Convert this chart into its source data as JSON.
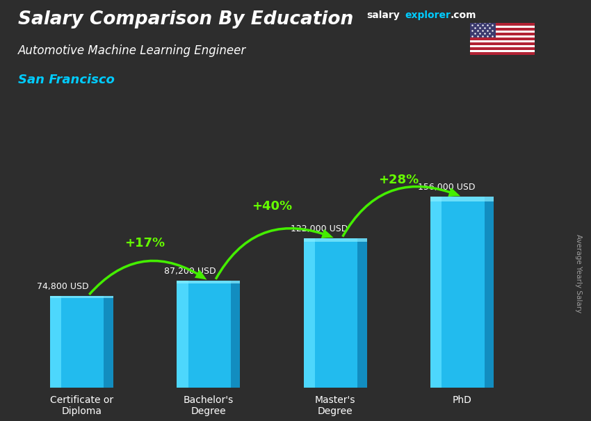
{
  "title_line1": "Salary Comparison By Education",
  "subtitle": "Automotive Machine Learning Engineer",
  "location": "San Francisco",
  "ylabel": "Average Yearly Salary",
  "categories": [
    "Certificate or\nDiploma",
    "Bachelor's\nDegree",
    "Master's\nDegree",
    "PhD"
  ],
  "values": [
    74800,
    87200,
    122000,
    156000
  ],
  "value_labels": [
    "74,800 USD",
    "87,200 USD",
    "122,000 USD",
    "156,000 USD"
  ],
  "pct_labels": [
    "+17%",
    "+40%",
    "+28%"
  ],
  "bar_color_main": "#22bbee",
  "bar_color_light": "#55ddff",
  "bar_color_dark": "#1188bb",
  "background_color": "#333333",
  "title_color": "#ffffff",
  "subtitle_color": "#ffffff",
  "location_color": "#00ccff",
  "value_label_color": "#ffffff",
  "pct_color": "#66ff00",
  "arrow_color": "#44ee00",
  "ylim": [
    0,
    200000
  ],
  "bar_width": 0.5,
  "x_positions": [
    0,
    1,
    2,
    3
  ]
}
